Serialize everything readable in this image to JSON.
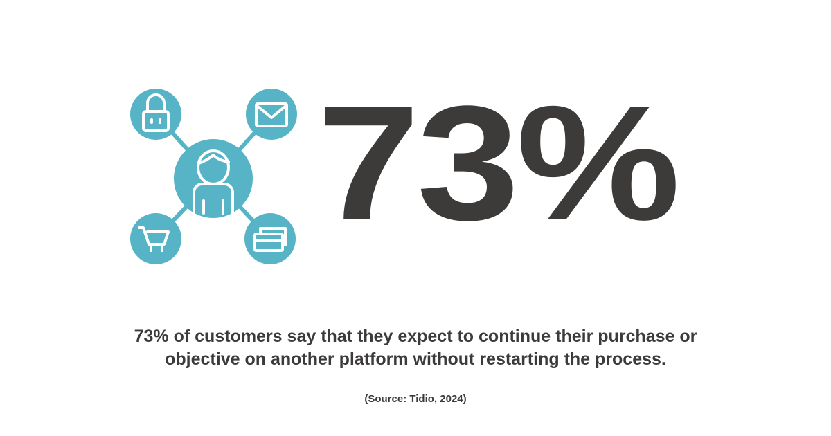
{
  "stat": {
    "value": "73%"
  },
  "caption": {
    "line1": "73% of customers say that they expect to continue their purchase or",
    "line2": "objective on another platform without restarting the process."
  },
  "source": "(Source: Tidio, 2024)",
  "colors": {
    "accent": "#56b4c6",
    "text": "#3d3a3a"
  },
  "icons": [
    "user-icon",
    "lock-icon",
    "mail-icon",
    "shopping-cart-icon",
    "credit-cards-icon"
  ]
}
